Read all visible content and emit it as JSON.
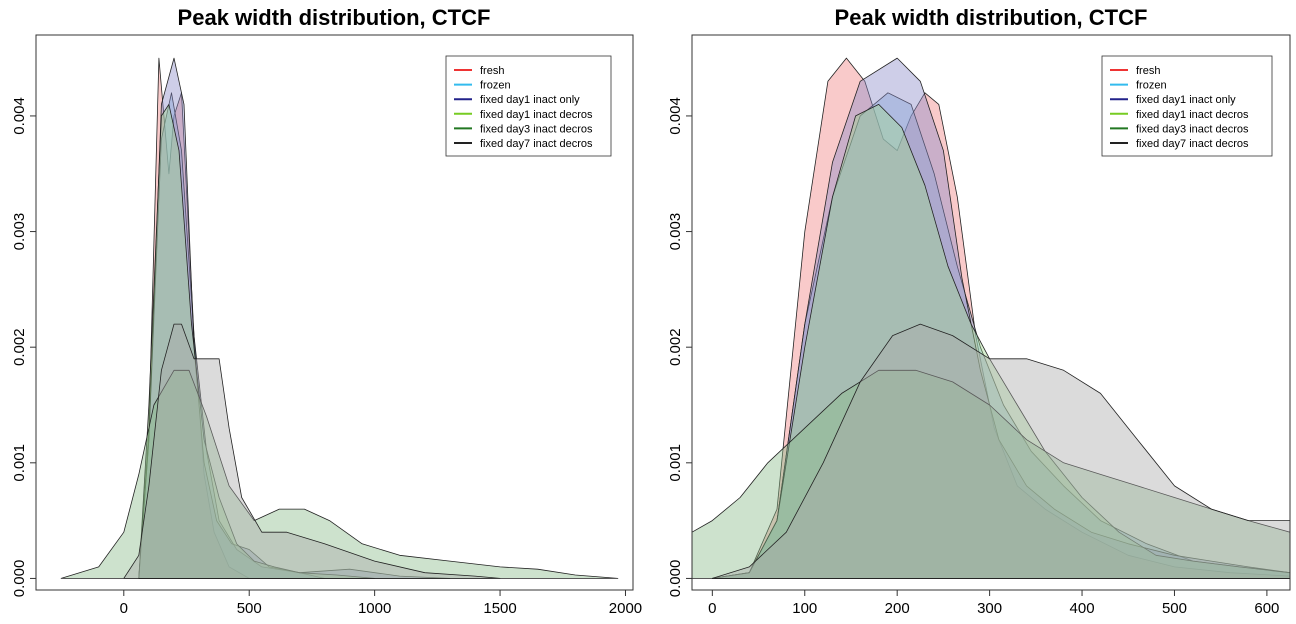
{
  "chart_data": [
    {
      "type": "area",
      "title": "Peak width distribution, CTCF",
      "xlabel": "",
      "ylabel": "",
      "xlim": [
        -350,
        2030
      ],
      "ylim": [
        -0.0001,
        0.0047
      ],
      "xticks": [
        0,
        500,
        1000,
        1500,
        2000
      ],
      "xtick_labels": [
        "0",
        "500",
        "1000",
        "1500",
        "2000"
      ],
      "yticks": [
        0.0,
        0.001,
        0.002,
        0.003,
        0.004
      ],
      "ytick_labels": [
        "0.000",
        "0.001",
        "0.002",
        "0.003",
        "0.004"
      ],
      "legend_position": "top-right",
      "legend": [
        "fresh",
        "frozen",
        "fixed day1 inact only",
        "fixed day1 inact decros",
        "fixed day3 inact decros",
        "fixed day7 inact decros"
      ],
      "series": [
        {
          "name": "fresh",
          "line_color": "#ee3333",
          "fill": "#f08080",
          "x": [
            60,
            100,
            140,
            180,
            200,
            230,
            280,
            320,
            360,
            420,
            500
          ],
          "y": [
            0,
            0.0013,
            0.0045,
            0.0035,
            0.004,
            0.0042,
            0.0021,
            0.0009,
            0.0004,
            0.0001,
            0
          ]
        },
        {
          "name": "frozen",
          "line_color": "#33bbee",
          "fill": "#80b0e0",
          "x": [
            60,
            100,
            150,
            190,
            230,
            280,
            330,
            380,
            450,
            550,
            700,
            800
          ],
          "y": [
            0,
            0.0012,
            0.0038,
            0.0042,
            0.0037,
            0.0021,
            0.0011,
            0.0005,
            0.00025,
            0.0001,
            5e-05,
            0
          ]
        },
        {
          "name": "fixed day1 inact only",
          "line_color": "#22228a",
          "fill": "#8a8ac8",
          "x": [
            60,
            100,
            150,
            200,
            240,
            280,
            320,
            370,
            430,
            500,
            580,
            700,
            900,
            1100,
            1300
          ],
          "y": [
            0,
            0.0012,
            0.0041,
            0.0045,
            0.0041,
            0.002,
            0.001,
            0.0005,
            0.0003,
            0.00025,
            0.0001,
            5e-05,
            8e-05,
            2e-05,
            0
          ]
        },
        {
          "name": "fixed day1 inact decros",
          "line_color": "#77cc22",
          "fill": "#a0d890",
          "x": [
            60,
            100,
            150,
            180,
            220,
            270,
            320,
            380,
            450,
            520,
            600,
            700,
            850,
            1000
          ],
          "y": [
            0,
            0.0015,
            0.004,
            0.0041,
            0.0037,
            0.0022,
            0.0012,
            0.0007,
            0.0003,
            0.00015,
            0.0001,
            5e-05,
            3e-05,
            0
          ]
        },
        {
          "name": "fixed day3 inact decros",
          "line_color": "#227722",
          "fill": "#88bb88",
          "x": [
            -250,
            -100,
            0,
            60,
            120,
            200,
            260,
            330,
            420,
            520,
            620,
            720,
            820,
            950,
            1100,
            1300,
            1500,
            1650,
            1800,
            1970
          ],
          "y": [
            0,
            0.0001,
            0.0004,
            0.0009,
            0.0015,
            0.0018,
            0.0018,
            0.0014,
            0.0008,
            0.0005,
            0.0006,
            0.0006,
            0.0005,
            0.0003,
            0.0002,
            0.00015,
            0.0001,
            8e-05,
            3e-05,
            0
          ]
        },
        {
          "name": "fixed day7 inact decros",
          "line_color": "#222222",
          "fill": "#aaaaaa",
          "x": [
            0,
            60,
            100,
            150,
            200,
            230,
            280,
            330,
            380,
            420,
            470,
            550,
            650,
            800,
            1000,
            1200,
            1400,
            1500
          ],
          "y": [
            0,
            0.0002,
            0.0008,
            0.0018,
            0.0022,
            0.0022,
            0.0019,
            0.0019,
            0.0019,
            0.0013,
            0.0007,
            0.0004,
            0.0004,
            0.0003,
            0.00015,
            5e-05,
            2e-05,
            0
          ]
        }
      ]
    },
    {
      "type": "area",
      "title": "Peak width distribution, CTCF",
      "xlabel": "",
      "ylabel": "",
      "xlim": [
        -22,
        625
      ],
      "ylim": [
        -0.0001,
        0.0047
      ],
      "xticks": [
        0,
        100,
        200,
        300,
        400,
        500,
        600
      ],
      "xtick_labels": [
        "0",
        "100",
        "200",
        "300",
        "400",
        "500",
        "600"
      ],
      "yticks": [
        0.0,
        0.001,
        0.002,
        0.003,
        0.004
      ],
      "ytick_labels": [
        "0.000",
        "0.001",
        "0.002",
        "0.003",
        "0.004"
      ],
      "legend_position": "top-right",
      "legend": [
        "fresh",
        "frozen",
        "fixed day1 inact only",
        "fixed day1 inact decros",
        "fixed day3 inact decros",
        "fixed day7 inact decros"
      ],
      "series": [
        {
          "name": "fresh",
          "line_color": "#ee3333",
          "fill": "#f08080",
          "x": [
            0,
            40,
            70,
            100,
            125,
            145,
            165,
            185,
            200,
            215,
            230,
            245,
            265,
            285,
            305,
            330,
            360,
            400,
            450,
            500,
            560,
            625
          ],
          "y": [
            0,
            5e-05,
            0.0006,
            0.003,
            0.0043,
            0.0045,
            0.0043,
            0.0038,
            0.0037,
            0.004,
            0.0042,
            0.0041,
            0.0033,
            0.0021,
            0.0013,
            0.0008,
            0.0006,
            0.0004,
            0.0002,
            0.0001,
            5e-05,
            2e-05
          ]
        },
        {
          "name": "frozen",
          "line_color": "#33bbee",
          "fill": "#80b0e0",
          "x": [
            0,
            40,
            70,
            100,
            130,
            160,
            190,
            215,
            240,
            265,
            290,
            315,
            345,
            380,
            420,
            470,
            520,
            570,
            625
          ],
          "y": [
            0,
            5e-05,
            0.0005,
            0.0022,
            0.0033,
            0.004,
            0.0042,
            0.0041,
            0.0035,
            0.0027,
            0.002,
            0.0015,
            0.0011,
            0.0008,
            0.0005,
            0.0003,
            0.00015,
            0.0001,
            5e-05
          ]
        },
        {
          "name": "fixed day1 inact only",
          "line_color": "#22228a",
          "fill": "#8a8ac8",
          "x": [
            0,
            40,
            70,
            100,
            130,
            160,
            200,
            225,
            250,
            270,
            290,
            310,
            340,
            370,
            410,
            450,
            500,
            540,
            580,
            625
          ],
          "y": [
            0,
            5e-05,
            0.0005,
            0.0022,
            0.0036,
            0.0043,
            0.0045,
            0.0043,
            0.0037,
            0.0026,
            0.0018,
            0.0012,
            0.0008,
            0.0006,
            0.0004,
            0.0003,
            0.0002,
            0.00015,
            0.0001,
            5e-05
          ]
        },
        {
          "name": "fixed day1 inact decros",
          "line_color": "#77cc22",
          "fill": "#a0d890",
          "x": [
            0,
            40,
            70,
            100,
            130,
            155,
            180,
            205,
            230,
            255,
            280,
            300,
            330,
            360,
            400,
            440,
            480,
            520,
            570,
            625
          ],
          "y": [
            0,
            5e-05,
            0.0005,
            0.002,
            0.0033,
            0.004,
            0.0041,
            0.0039,
            0.0034,
            0.0027,
            0.0022,
            0.0019,
            0.0015,
            0.0011,
            0.0007,
            0.0004,
            0.0002,
            0.00015,
            0.0001,
            5e-05
          ]
        },
        {
          "name": "fixed day3 inact decros",
          "line_color": "#227722",
          "fill": "#88bb88",
          "x": [
            -22,
            0,
            30,
            60,
            100,
            140,
            180,
            220,
            260,
            300,
            340,
            380,
            420,
            460,
            500,
            540,
            580,
            625
          ],
          "y": [
            0.0004,
            0.0005,
            0.0007,
            0.001,
            0.0013,
            0.0016,
            0.0018,
            0.0018,
            0.0017,
            0.0015,
            0.0012,
            0.001,
            0.0009,
            0.0008,
            0.0007,
            0.0006,
            0.0005,
            0.0004
          ]
        },
        {
          "name": "fixed day7 inact decros",
          "line_color": "#222222",
          "fill": "#aaaaaa",
          "x": [
            0,
            40,
            80,
            120,
            160,
            195,
            225,
            260,
            300,
            340,
            380,
            420,
            460,
            500,
            540,
            580,
            625
          ],
          "y": [
            0,
            0.0001,
            0.0004,
            0.001,
            0.0017,
            0.0021,
            0.0022,
            0.0021,
            0.0019,
            0.0019,
            0.0018,
            0.0016,
            0.0012,
            0.0008,
            0.0006,
            0.0005,
            0.0005
          ]
        }
      ]
    }
  ]
}
